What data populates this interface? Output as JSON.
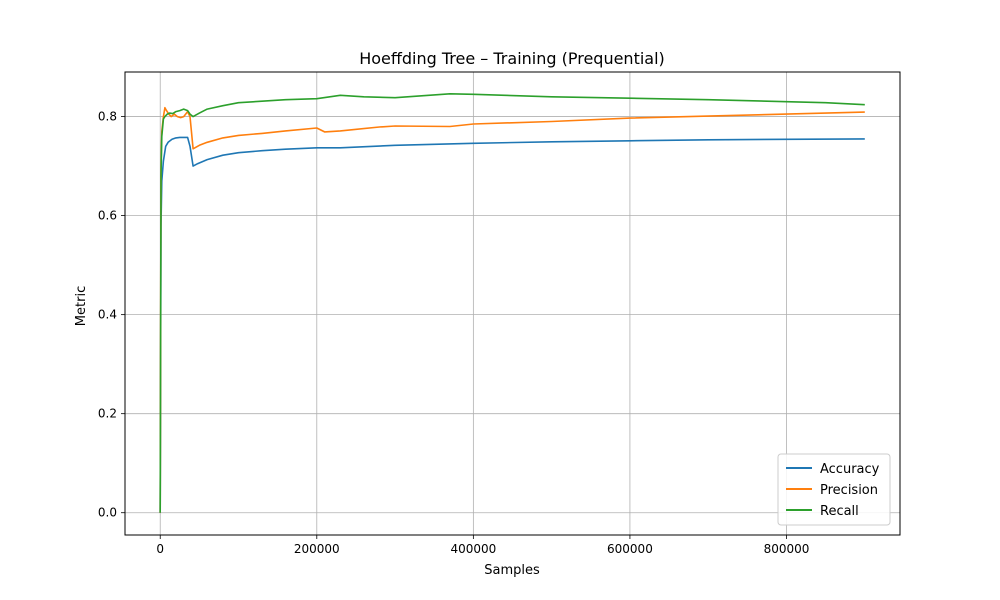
{
  "chart_data": {
    "type": "line",
    "title": "Hoeffding Tree – Training (Prequential)",
    "xlabel": "Samples",
    "ylabel": "Metric",
    "xlim": [
      -45000,
      945000
    ],
    "ylim": [
      -0.045,
      0.89
    ],
    "xticks": [
      0,
      200000,
      400000,
      600000,
      800000
    ],
    "xtick_labels": [
      "0",
      "200000",
      "400000",
      "600000",
      "800000"
    ],
    "yticks": [
      0.0,
      0.2,
      0.4,
      0.6,
      0.8
    ],
    "ytick_labels": [
      "0.0",
      "0.2",
      "0.4",
      "0.6",
      "0.8"
    ],
    "grid": true,
    "legend_position": "lower-right",
    "series": [
      {
        "name": "Accuracy",
        "color": "#1f77b4",
        "x": [
          0,
          1000,
          2000,
          4000,
          7000,
          10000,
          15000,
          20000,
          25000,
          30000,
          35000,
          38000,
          42000,
          48000,
          60000,
          80000,
          100000,
          130000,
          160000,
          200000,
          230000,
          300000,
          400000,
          500000,
          600000,
          700000,
          800000,
          900000
        ],
        "y": [
          0.0,
          0.58,
          0.67,
          0.71,
          0.74,
          0.748,
          0.754,
          0.757,
          0.758,
          0.758,
          0.758,
          0.74,
          0.7,
          0.705,
          0.713,
          0.722,
          0.727,
          0.731,
          0.734,
          0.737,
          0.737,
          0.742,
          0.746,
          0.749,
          0.751,
          0.753,
          0.754,
          0.755
        ]
      },
      {
        "name": "Precision",
        "color": "#ff7f0e",
        "x": [
          0,
          1000,
          2000,
          4000,
          6000,
          8000,
          11000,
          14000,
          18000,
          22000,
          26000,
          30000,
          35000,
          38000,
          42000,
          50000,
          60000,
          80000,
          100000,
          130000,
          160000,
          200000,
          210000,
          230000,
          280000,
          300000,
          370000,
          400000,
          500000,
          600000,
          700000,
          800000,
          900000
        ],
        "y": [
          0.0,
          0.7,
          0.77,
          0.8,
          0.818,
          0.812,
          0.805,
          0.8,
          0.805,
          0.8,
          0.798,
          0.8,
          0.81,
          0.8,
          0.735,
          0.742,
          0.748,
          0.757,
          0.762,
          0.766,
          0.771,
          0.777,
          0.769,
          0.771,
          0.779,
          0.781,
          0.78,
          0.785,
          0.79,
          0.797,
          0.801,
          0.805,
          0.809
        ]
      },
      {
        "name": "Recall",
        "color": "#2ca02c",
        "x": [
          0,
          1000,
          2000,
          4000,
          6000,
          9000,
          12000,
          16000,
          20000,
          25000,
          30000,
          35000,
          38000,
          42000,
          50000,
          60000,
          80000,
          100000,
          130000,
          160000,
          200000,
          230000,
          260000,
          300000,
          370000,
          400000,
          500000,
          600000,
          700000,
          800000,
          850000,
          900000
        ],
        "y": [
          0.0,
          0.68,
          0.76,
          0.795,
          0.8,
          0.805,
          0.807,
          0.806,
          0.81,
          0.812,
          0.815,
          0.812,
          0.805,
          0.8,
          0.807,
          0.815,
          0.822,
          0.828,
          0.831,
          0.834,
          0.836,
          0.843,
          0.84,
          0.838,
          0.846,
          0.845,
          0.84,
          0.837,
          0.834,
          0.83,
          0.828,
          0.824
        ]
      }
    ]
  }
}
